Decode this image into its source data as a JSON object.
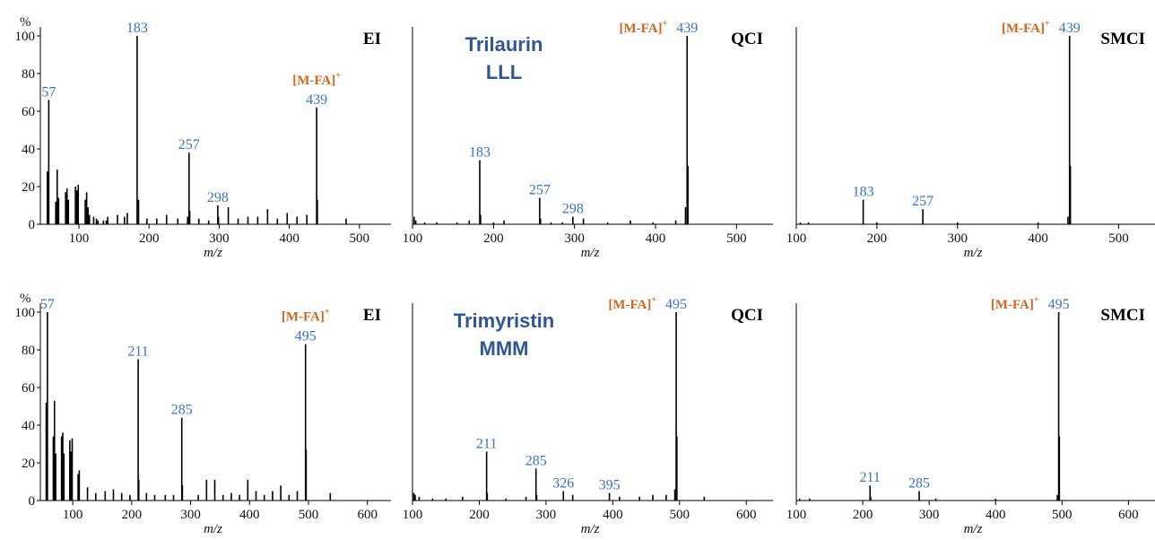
{
  "colors": {
    "peak_label": "#3a72c6",
    "ion_label": "#d0661c",
    "compound_label": "#2e5597",
    "mark": "#000000"
  },
  "ion_label_text": "[M-FA]",
  "ion_label_sup": "+",
  "chart_data": [
    {
      "type": "bar",
      "mode": "EI",
      "xlabel": "m/z",
      "ylabel": "%",
      "xlim": [
        45,
        545
      ],
      "ylim": [
        0,
        100
      ],
      "xticks": [
        100,
        200,
        300,
        400,
        500
      ],
      "yticks": [
        0,
        20,
        40,
        60,
        80,
        100
      ],
      "labeled_peaks": [
        {
          "mz": 57,
          "label": "57"
        },
        {
          "mz": 183,
          "label": "183"
        },
        {
          "mz": 257,
          "label": "257"
        },
        {
          "mz": 298,
          "label": "298"
        },
        {
          "mz": 439,
          "label": "439",
          "ion": true
        }
      ],
      "x": [
        55,
        57,
        67,
        69,
        71,
        81,
        83,
        85,
        95,
        97,
        99,
        109,
        111,
        113,
        115,
        121,
        125,
        127,
        135,
        139,
        141,
        155,
        165,
        169,
        183,
        185,
        197,
        211,
        225,
        241,
        255,
        257,
        258,
        271,
        285,
        298,
        299,
        313,
        327,
        341,
        355,
        369,
        383,
        397,
        411,
        425,
        439,
        440,
        481
      ],
      "y": [
        28,
        66,
        12,
        29,
        14,
        17,
        19,
        13,
        20,
        18,
        21,
        13,
        17,
        9,
        5,
        4,
        3,
        2,
        2,
        2,
        4,
        5,
        4,
        6,
        100,
        13,
        3,
        3,
        5,
        3,
        4,
        38,
        7,
        3,
        2,
        10,
        4,
        9,
        3,
        4,
        4,
        8,
        3,
        6,
        4,
        5,
        62,
        13,
        3
      ]
    },
    {
      "type": "bar",
      "mode": "QCI",
      "xlabel": "m/z",
      "compound": [
        "Trilaurin",
        "LLL"
      ],
      "xlim": [
        100,
        545
      ],
      "ylim": [
        0,
        100
      ],
      "xticks": [
        100,
        200,
        300,
        400,
        500
      ],
      "labeled_peaks": [
        {
          "mz": 183,
          "label": "183"
        },
        {
          "mz": 257,
          "label": "257"
        },
        {
          "mz": 298,
          "label": "298"
        },
        {
          "mz": 439,
          "label": "439",
          "ion": true
        }
      ],
      "x": [
        102,
        104,
        115,
        130,
        155,
        170,
        183,
        184,
        200,
        213,
        257,
        258,
        271,
        285,
        298,
        311,
        341,
        369,
        397,
        425,
        437,
        439,
        440
      ],
      "y": [
        4,
        2,
        1,
        1,
        1,
        2,
        34,
        5,
        1,
        2,
        14,
        3,
        1,
        1,
        4,
        3,
        1,
        2,
        1,
        2,
        9,
        100,
        31
      ]
    },
    {
      "type": "bar",
      "mode": "SMCI",
      "xlabel": "m/z",
      "xlim": [
        100,
        545
      ],
      "ylim": [
        0,
        100
      ],
      "xticks": [
        100,
        200,
        300,
        400,
        500
      ],
      "labeled_peaks": [
        {
          "mz": 183,
          "label": "183"
        },
        {
          "mz": 257,
          "label": "257"
        },
        {
          "mz": 439,
          "label": "439",
          "ion": true
        }
      ],
      "x": [
        105,
        115,
        183,
        200,
        257,
        300,
        400,
        437,
        439,
        440
      ],
      "y": [
        1,
        1,
        13,
        1,
        8,
        1,
        1,
        4,
        100,
        31
      ]
    },
    {
      "type": "bar",
      "mode": "EI",
      "xlabel": "m/z",
      "ylabel": "%",
      "xlim": [
        45,
        640
      ],
      "ylim": [
        0,
        100
      ],
      "xticks": [
        100,
        200,
        300,
        400,
        500,
        600
      ],
      "yticks": [
        0,
        20,
        40,
        60,
        80,
        100
      ],
      "labeled_peaks": [
        {
          "mz": 57,
          "label": "57"
        },
        {
          "mz": 211,
          "label": "211"
        },
        {
          "mz": 285,
          "label": "285"
        },
        {
          "mz": 495,
          "label": "495",
          "ion": true
        }
      ],
      "x": [
        55,
        57,
        67,
        69,
        71,
        81,
        83,
        85,
        95,
        97,
        99,
        109,
        111,
        125,
        139,
        155,
        169,
        183,
        197,
        211,
        212,
        225,
        239,
        257,
        271,
        285,
        286,
        313,
        327,
        341,
        355,
        369,
        383,
        397,
        411,
        425,
        439,
        453,
        467,
        481,
        495,
        496,
        537
      ],
      "y": [
        52,
        100,
        34,
        53,
        25,
        34,
        36,
        25,
        32,
        26,
        33,
        14,
        16,
        7,
        4,
        5,
        6,
        4,
        3,
        75,
        11,
        4,
        3,
        3,
        3,
        44,
        8,
        3,
        11,
        11,
        3,
        4,
        3,
        11,
        5,
        3,
        5,
        8,
        3,
        5,
        83,
        27,
        4
      ]
    },
    {
      "type": "bar",
      "mode": "QCI",
      "xlabel": "m/z",
      "compound": [
        "Trimyristin",
        "MMM"
      ],
      "xlim": [
        100,
        640
      ],
      "ylim": [
        0,
        100
      ],
      "xticks": [
        100,
        200,
        300,
        400,
        500,
        600
      ],
      "labeled_peaks": [
        {
          "mz": 211,
          "label": "211"
        },
        {
          "mz": 285,
          "label": "285"
        },
        {
          "mz": 326,
          "label": "326"
        },
        {
          "mz": 395,
          "label": "395"
        },
        {
          "mz": 495,
          "label": "495",
          "ion": true
        }
      ],
      "x": [
        102,
        104,
        110,
        130,
        150,
        175,
        211,
        212,
        240,
        270,
        285,
        286,
        326,
        340,
        395,
        410,
        440,
        460,
        480,
        493,
        495,
        496,
        537
      ],
      "y": [
        4,
        3,
        2,
        1,
        1,
        2,
        26,
        4,
        1,
        2,
        17,
        3,
        5,
        3,
        4,
        2,
        2,
        3,
        3,
        6,
        100,
        34,
        2
      ]
    },
    {
      "type": "bar",
      "mode": "SMCI",
      "xlabel": "m/z",
      "xlim": [
        100,
        640
      ],
      "ylim": [
        0,
        100
      ],
      "xticks": [
        100,
        200,
        300,
        400,
        500,
        600
      ],
      "labeled_peaks": [
        {
          "mz": 211,
          "label": "211"
        },
        {
          "mz": 285,
          "label": "285"
        },
        {
          "mz": 495,
          "label": "495",
          "ion": true
        }
      ],
      "x": [
        105,
        120,
        211,
        212,
        285,
        310,
        400,
        493,
        495,
        496
      ],
      "y": [
        1,
        1,
        8,
        2,
        5,
        1,
        1,
        3,
        100,
        34
      ]
    }
  ]
}
